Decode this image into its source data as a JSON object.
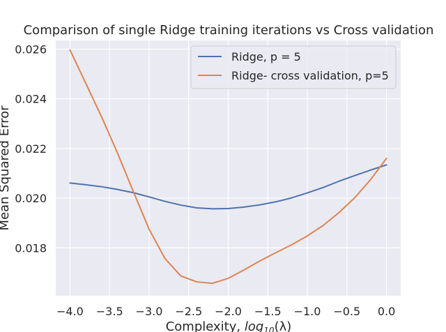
{
  "chart_data": {
    "type": "line",
    "title": "Comparison of single Ridge training iterations vs Cross validation",
    "xlabel": "Complexity, log10(λ)",
    "xlabel_parts": {
      "prefix": "Complexity, ",
      "func": "log",
      "sub": "10",
      "arg": "(λ)"
    },
    "ylabel": "Mean Squared Error",
    "xlim": [
      -4.18,
      0.18
    ],
    "ylim": [
      0.01607,
      0.02635
    ],
    "xticks": [
      -4.0,
      -3.5,
      -3.0,
      -2.5,
      -2.0,
      -1.5,
      -1.0,
      -0.5,
      0.0
    ],
    "xtick_labels": [
      "−4.0",
      "−3.5",
      "−3.0",
      "−2.5",
      "−2.0",
      "−1.5",
      "−1.0",
      "−0.5",
      "0.0"
    ],
    "yticks": [
      0.018,
      0.02,
      0.022,
      0.024,
      0.026
    ],
    "ytick_labels": [
      "0.018",
      "0.020",
      "0.022",
      "0.024",
      "0.026"
    ],
    "grid": true,
    "legend_position": "top-right",
    "x": [
      -4.0,
      -3.8,
      -3.6,
      -3.4,
      -3.2,
      -3.0,
      -2.8,
      -2.6,
      -2.4,
      -2.2,
      -2.0,
      -1.8,
      -1.6,
      -1.4,
      -1.2,
      -1.0,
      -0.8,
      -0.6,
      -0.4,
      -0.2,
      0.0
    ],
    "series": [
      {
        "name": "Ridge, p = 5",
        "color": "#4c72b0",
        "values": [
          0.02061,
          0.02054,
          0.02046,
          0.02035,
          0.02022,
          0.02005,
          0.01987,
          0.01972,
          0.01961,
          0.01957,
          0.01958,
          0.01964,
          0.01973,
          0.01985,
          0.02001,
          0.02021,
          0.02043,
          0.02068,
          0.02091,
          0.02113,
          0.02134
        ]
      },
      {
        "name": "Ridge- cross validation, p=5",
        "color": "#dd8452",
        "values": [
          0.02597,
          0.02462,
          0.02327,
          0.02182,
          0.02027,
          0.01875,
          0.01757,
          0.01687,
          0.01663,
          0.01657,
          0.01677,
          0.01711,
          0.01747,
          0.0178,
          0.01812,
          0.01848,
          0.0189,
          0.01942,
          0.02002,
          0.02075,
          0.0216
        ]
      }
    ]
  }
}
